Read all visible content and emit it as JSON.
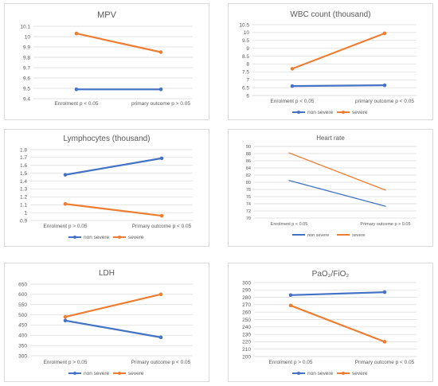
{
  "colors": {
    "non_severe": "#4472c4",
    "severe": "#ed7d31",
    "grid": "#d9d9d9",
    "text": "#595959"
  },
  "chart_data": [
    {
      "type": "line",
      "title": "MPV",
      "categories": [
        "Enrolment p < 0.05",
        "primary outcome p > 0.05"
      ],
      "ylim": [
        9.4,
        10.1
      ],
      "yticks": [
        "9.4",
        "9.5",
        "9.6",
        "9.7",
        "9.8",
        "9.9",
        "10",
        "10.1"
      ],
      "grid": true,
      "legend": "",
      "markers": true,
      "series": [
        {
          "name": "non severe",
          "color": "#4472c4",
          "values": [
            9.49,
            9.49
          ]
        },
        {
          "name": "severe",
          "color": "#ed7d31",
          "values": [
            10.03,
            9.85
          ]
        }
      ]
    },
    {
      "type": "line",
      "title": "WBC count (thousand)",
      "categories": [
        "Enrolment p < 0.05",
        "primary outcome p < 0.05"
      ],
      "ylim": [
        6,
        10.5
      ],
      "yticks": [
        "6",
        "6.5",
        "7",
        "7.5",
        "8",
        "8.5",
        "9",
        "9.5",
        "10",
        "10.5"
      ],
      "grid": true,
      "legend": "bottom",
      "markers": true,
      "series": [
        {
          "name": "non severe",
          "color": "#4472c4",
          "values": [
            6.6,
            6.65
          ]
        },
        {
          "name": "severe",
          "color": "#ed7d31",
          "values": [
            7.7,
            9.95
          ]
        }
      ]
    },
    {
      "type": "line",
      "title": "Lymphocytes (thousand)",
      "categories": [
        "Enrolment p > 0.05",
        "Primary outcome p < 0.05"
      ],
      "ylim": [
        0.9,
        1.8
      ],
      "yticks": [
        "0.9",
        "1",
        "1.1",
        "1.2",
        "1.3",
        "1.4",
        "1.5",
        "1.6",
        "1.7",
        "1.8"
      ],
      "grid": true,
      "legend": "bottom",
      "markers": true,
      "series": [
        {
          "name": "non severe",
          "color": "#4472c4",
          "values": [
            1.48,
            1.69
          ]
        },
        {
          "name": "severe",
          "color": "#ed7d31",
          "values": [
            1.11,
            0.96
          ]
        }
      ]
    },
    {
      "type": "line",
      "title": "Heart rate",
      "categories": [
        "Enrolment p < 0.05",
        "Primary outcome p > 0.05"
      ],
      "ylim": [
        70,
        90
      ],
      "yticks": [
        "70",
        "72",
        "74",
        "76",
        "78",
        "80",
        "82",
        "84",
        "86",
        "88",
        "90"
      ],
      "grid": true,
      "legend": "bottom",
      "markers": false,
      "series": [
        {
          "name": "non severe",
          "color": "#4472c4",
          "values": [
            80.5,
            73.3
          ]
        },
        {
          "name": "severe",
          "color": "#ed7d31",
          "values": [
            88.2,
            77.8
          ]
        }
      ]
    },
    {
      "type": "line",
      "title": "LDH",
      "categories": [
        "Enrolment p > 0.05",
        "Primary outcome p < 0.05"
      ],
      "ylim": [
        300,
        650
      ],
      "yticks": [
        "300",
        "350",
        "400",
        "450",
        "500",
        "550",
        "600",
        "650"
      ],
      "grid": true,
      "legend": "bottom",
      "markers": true,
      "series": [
        {
          "name": "non severe",
          "color": "#4472c4",
          "values": [
            472,
            390
          ]
        },
        {
          "name": "severe",
          "color": "#ed7d31",
          "values": [
            490,
            600
          ]
        }
      ]
    },
    {
      "type": "line",
      "title": "PaO₂/FiO₂",
      "categories": [
        "Enrolment p > 0.05",
        "Primary outcome p < 0.05"
      ],
      "ylim": [
        200,
        300
      ],
      "yticks": [
        "200",
        "210",
        "220",
        "230",
        "240",
        "250",
        "260",
        "270",
        "280",
        "290",
        "300"
      ],
      "grid": true,
      "legend": "bottom",
      "markers": true,
      "series": [
        {
          "name": "non severe",
          "color": "#4472c4",
          "values": [
            283,
            287
          ]
        },
        {
          "name": "severe",
          "color": "#ed7d31",
          "values": [
            269,
            220
          ]
        }
      ]
    }
  ]
}
